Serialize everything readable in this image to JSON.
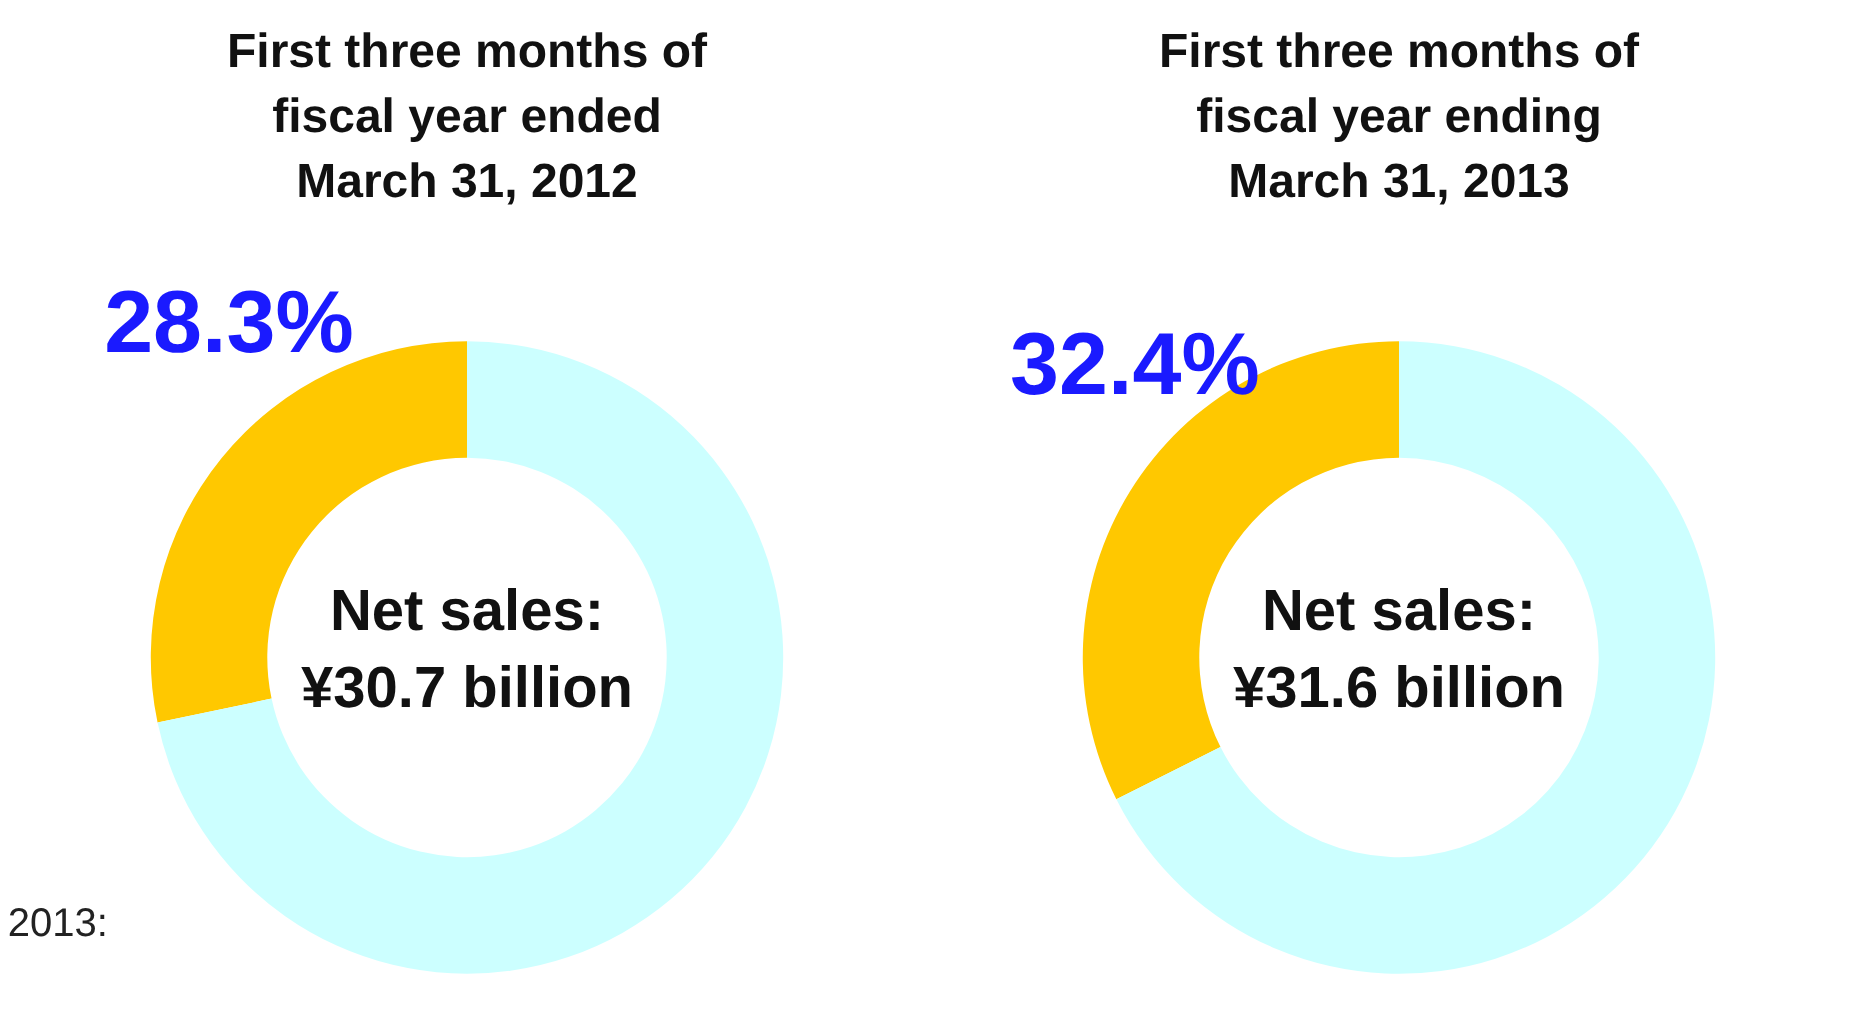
{
  "chart_data": [
    {
      "type": "donut",
      "title": "First three months of\nfiscal year ended\nMarch 31, 2012",
      "categories": [
        null,
        null
      ],
      "values": [
        28.3,
        71.7
      ],
      "colors": [
        "#ffc800",
        "#ccffff"
      ],
      "value_labels": [
        "28.3%",
        null
      ],
      "annotations": [
        "Net sales:\n¥30.7 billion",
        "2013:"
      ]
    },
    {
      "type": "donut",
      "title": "First three months of\nfiscal year ending\nMarch 31, 2013",
      "categories": [
        null,
        null
      ],
      "values": [
        32.4,
        67.6
      ],
      "colors": [
        "#ffc800",
        "#ccffff"
      ],
      "value_labels": [
        "32.4%",
        null
      ],
      "annotations": [
        "Net sales:\n¥31.6 billion"
      ]
    }
  ]
}
